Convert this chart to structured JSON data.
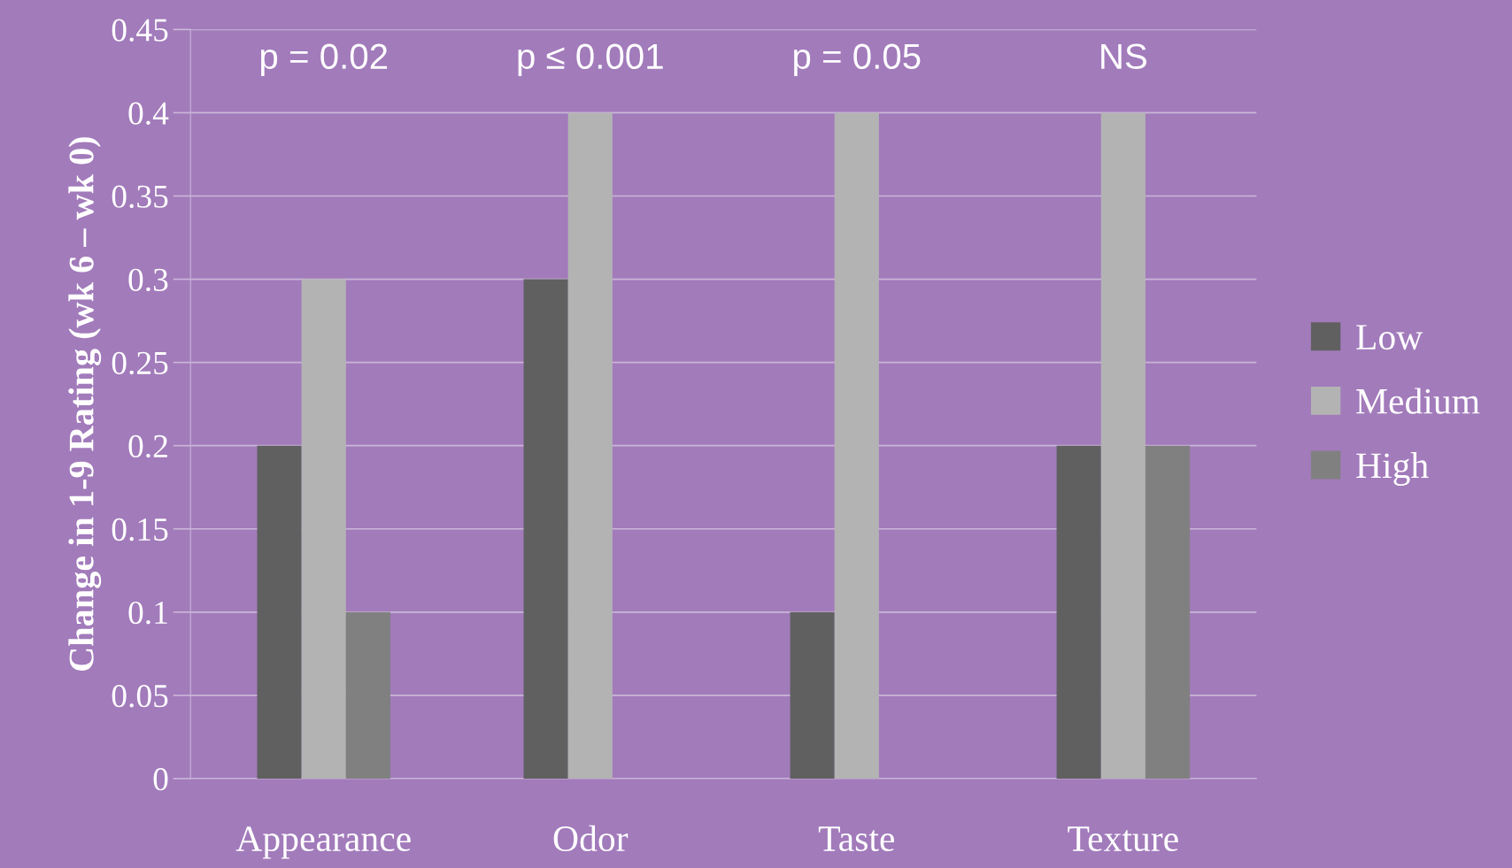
{
  "chart_data": {
    "type": "bar",
    "categories": [
      "Appearance",
      "Odor",
      "Taste",
      "Texture"
    ],
    "series": [
      {
        "name": "Low",
        "color": "#606060",
        "values": [
          0.2,
          0.3,
          0.1,
          0.2
        ]
      },
      {
        "name": "Medium",
        "color": "#b3b3b3",
        "values": [
          0.3,
          0.4,
          0.4,
          0.4
        ]
      },
      {
        "name": "High",
        "color": "#808080",
        "values": [
          0.1,
          0,
          0,
          0.2
        ]
      }
    ],
    "ylabel": "Change in 1-9 Rating (wk 6 – wk 0)",
    "ylim": [
      0,
      0.45
    ],
    "yticks": [
      0,
      0.05,
      0.1,
      0.15,
      0.2,
      0.25,
      0.3,
      0.35,
      0.4,
      0.45
    ],
    "grid": "y",
    "legend": "right",
    "annotations": [
      "p = 0.02",
      "p ≤ 0.001",
      "p = 0.05",
      "NS"
    ]
  }
}
